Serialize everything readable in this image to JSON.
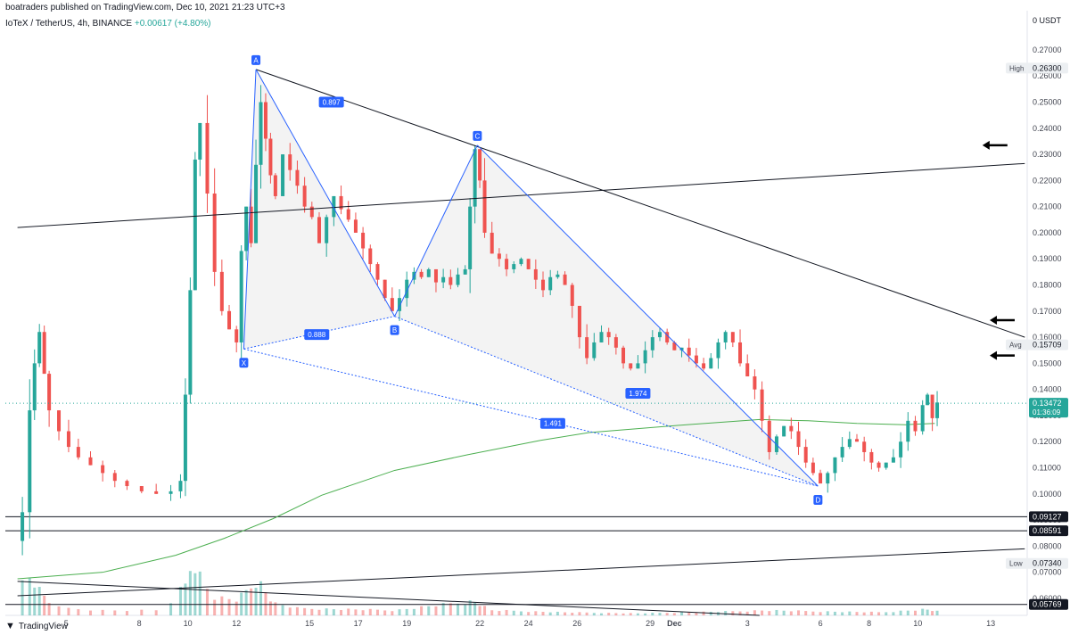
{
  "header": {
    "publisher": "boatraders published on TradingView.com, Dec 10, 2021 21:23 UTC+3",
    "symbol": "IoTeX / TetherUS, 4h, BINANCE",
    "change": "+0.00617 (+4.80%)"
  },
  "footer": {
    "brand": "TradingView"
  },
  "colors": {
    "up": "#26a69a",
    "down": "#ef5350",
    "pattern": "#2962ff",
    "ma": "#4caf50",
    "trend": "#131722"
  },
  "chart_data": {
    "type": "candlestick",
    "currency_label": "USDT",
    "ylim": [
      0.0535,
      0.285
    ],
    "y_ticks": [
      "0.27000",
      "0.26000",
      "0.25000",
      "0.24000",
      "0.23000",
      "0.22000",
      "0.21000",
      "0.20000",
      "0.19000",
      "0.18000",
      "0.17000",
      "0.16000",
      "0.15000",
      "0.14000",
      "0.13000",
      "0.12000",
      "0.11000",
      "0.10000",
      "0.09000",
      "0.08000",
      "0.07000",
      "0.06000"
    ],
    "x_ticks": [
      {
        "label": "5",
        "t": 6.5
      },
      {
        "label": "8",
        "t": 9.5
      },
      {
        "label": "10",
        "t": 11.5
      },
      {
        "label": "12",
        "t": 13.5
      },
      {
        "label": "15",
        "t": 16.5
      },
      {
        "label": "17",
        "t": 18.5
      },
      {
        "label": "19",
        "t": 20.5
      },
      {
        "label": "22",
        "t": 23.5
      },
      {
        "label": "24",
        "t": 25.5
      },
      {
        "label": "26",
        "t": 27.5
      },
      {
        "label": "29",
        "t": 30.5
      },
      {
        "label": "Dec",
        "t": 31.5
      },
      {
        "label": "3",
        "t": 34.5
      },
      {
        "label": "6",
        "t": 37.5
      },
      {
        "label": "8",
        "t": 39.5
      },
      {
        "label": "10",
        "t": 41.5
      },
      {
        "label": "13",
        "t": 44.5
      }
    ],
    "candle_close_points": [
      {
        "t": 4.5,
        "p": 0.082
      },
      {
        "t": 4.7,
        "p": 0.093
      },
      {
        "t": 5.0,
        "p": 0.132
      },
      {
        "t": 5.2,
        "p": 0.15
      },
      {
        "t": 5.4,
        "p": 0.162
      },
      {
        "t": 5.6,
        "p": 0.146
      },
      {
        "t": 5.8,
        "p": 0.132
      },
      {
        "t": 6.2,
        "p": 0.124
      },
      {
        "t": 6.6,
        "p": 0.118
      },
      {
        "t": 7.0,
        "p": 0.114
      },
      {
        "t": 7.5,
        "p": 0.111
      },
      {
        "t": 8.0,
        "p": 0.108
      },
      {
        "t": 8.5,
        "p": 0.105
      },
      {
        "t": 9.0,
        "p": 0.103
      },
      {
        "t": 9.6,
        "p": 0.101
      },
      {
        "t": 10.2,
        "p": 0.1
      },
      {
        "t": 10.8,
        "p": 0.101
      },
      {
        "t": 11.2,
        "p": 0.105
      },
      {
        "t": 11.4,
        "p": 0.138
      },
      {
        "t": 11.6,
        "p": 0.178
      },
      {
        "t": 11.8,
        "p": 0.228
      },
      {
        "t": 12.0,
        "p": 0.242
      },
      {
        "t": 12.3,
        "p": 0.215
      },
      {
        "t": 12.6,
        "p": 0.185
      },
      {
        "t": 12.9,
        "p": 0.17
      },
      {
        "t": 13.2,
        "p": 0.163
      },
      {
        "t": 13.5,
        "p": 0.158
      },
      {
        "t": 13.7,
        "p": 0.193
      },
      {
        "t": 13.9,
        "p": 0.21
      },
      {
        "t": 14.1,
        "p": 0.196
      },
      {
        "t": 14.3,
        "p": 0.226
      },
      {
        "t": 14.5,
        "p": 0.25
      },
      {
        "t": 14.7,
        "p": 0.236
      },
      {
        "t": 14.9,
        "p": 0.222
      },
      {
        "t": 15.1,
        "p": 0.214
      },
      {
        "t": 15.4,
        "p": 0.23
      },
      {
        "t": 15.7,
        "p": 0.224
      },
      {
        "t": 16.0,
        "p": 0.218
      },
      {
        "t": 16.3,
        "p": 0.21
      },
      {
        "t": 16.6,
        "p": 0.206
      },
      {
        "t": 16.9,
        "p": 0.196
      },
      {
        "t": 17.2,
        "p": 0.206
      },
      {
        "t": 17.5,
        "p": 0.214
      },
      {
        "t": 17.8,
        "p": 0.209
      },
      {
        "t": 18.1,
        "p": 0.205
      },
      {
        "t": 18.4,
        "p": 0.2
      },
      {
        "t": 18.7,
        "p": 0.194
      },
      {
        "t": 19.0,
        "p": 0.188
      },
      {
        "t": 19.3,
        "p": 0.182
      },
      {
        "t": 19.6,
        "p": 0.175
      },
      {
        "t": 19.9,
        "p": 0.17
      },
      {
        "t": 20.2,
        "p": 0.175
      },
      {
        "t": 20.5,
        "p": 0.182
      },
      {
        "t": 20.8,
        "p": 0.185
      },
      {
        "t": 21.1,
        "p": 0.183
      },
      {
        "t": 21.4,
        "p": 0.186
      },
      {
        "t": 21.7,
        "p": 0.181
      },
      {
        "t": 22.0,
        "p": 0.183
      },
      {
        "t": 22.3,
        "p": 0.18
      },
      {
        "t": 22.6,
        "p": 0.184
      },
      {
        "t": 22.9,
        "p": 0.186
      },
      {
        "t": 23.1,
        "p": 0.21
      },
      {
        "t": 23.3,
        "p": 0.232
      },
      {
        "t": 23.5,
        "p": 0.22
      },
      {
        "t": 23.7,
        "p": 0.2
      },
      {
        "t": 24.0,
        "p": 0.192
      },
      {
        "t": 24.3,
        "p": 0.19
      },
      {
        "t": 24.6,
        "p": 0.186
      },
      {
        "t": 24.9,
        "p": 0.188
      },
      {
        "t": 25.2,
        "p": 0.19
      },
      {
        "t": 25.5,
        "p": 0.186
      },
      {
        "t": 25.8,
        "p": 0.182
      },
      {
        "t": 26.1,
        "p": 0.178
      },
      {
        "t": 26.4,
        "p": 0.183
      },
      {
        "t": 26.7,
        "p": 0.184
      },
      {
        "t": 27.0,
        "p": 0.18
      },
      {
        "t": 27.3,
        "p": 0.172
      },
      {
        "t": 27.6,
        "p": 0.16
      },
      {
        "t": 27.9,
        "p": 0.152
      },
      {
        "t": 28.2,
        "p": 0.158
      },
      {
        "t": 28.5,
        "p": 0.162
      },
      {
        "t": 28.8,
        "p": 0.16
      },
      {
        "t": 29.1,
        "p": 0.156
      },
      {
        "t": 29.4,
        "p": 0.15
      },
      {
        "t": 29.7,
        "p": 0.148
      },
      {
        "t": 30.0,
        "p": 0.15
      },
      {
        "t": 30.3,
        "p": 0.155
      },
      {
        "t": 30.6,
        "p": 0.16
      },
      {
        "t": 30.9,
        "p": 0.162
      },
      {
        "t": 31.2,
        "p": 0.158
      },
      {
        "t": 31.5,
        "p": 0.155
      },
      {
        "t": 31.8,
        "p": 0.156
      },
      {
        "t": 32.1,
        "p": 0.153
      },
      {
        "t": 32.4,
        "p": 0.15
      },
      {
        "t": 32.7,
        "p": 0.148
      },
      {
        "t": 33.0,
        "p": 0.152
      },
      {
        "t": 33.3,
        "p": 0.158
      },
      {
        "t": 33.6,
        "p": 0.162
      },
      {
        "t": 33.9,
        "p": 0.158
      },
      {
        "t": 34.2,
        "p": 0.15
      },
      {
        "t": 34.5,
        "p": 0.145
      },
      {
        "t": 34.8,
        "p": 0.14
      },
      {
        "t": 35.1,
        "p": 0.128
      },
      {
        "t": 35.4,
        "p": 0.116
      },
      {
        "t": 35.7,
        "p": 0.122
      },
      {
        "t": 36.0,
        "p": 0.126
      },
      {
        "t": 36.3,
        "p": 0.124
      },
      {
        "t": 36.6,
        "p": 0.118
      },
      {
        "t": 36.9,
        "p": 0.112
      },
      {
        "t": 37.2,
        "p": 0.108
      },
      {
        "t": 37.5,
        "p": 0.104
      },
      {
        "t": 37.8,
        "p": 0.108
      },
      {
        "t": 38.1,
        "p": 0.114
      },
      {
        "t": 38.4,
        "p": 0.118
      },
      {
        "t": 38.7,
        "p": 0.121
      },
      {
        "t": 39.0,
        "p": 0.12
      },
      {
        "t": 39.3,
        "p": 0.116
      },
      {
        "t": 39.6,
        "p": 0.112
      },
      {
        "t": 39.9,
        "p": 0.11
      },
      {
        "t": 40.2,
        "p": 0.112
      },
      {
        "t": 40.5,
        "p": 0.114
      },
      {
        "t": 40.8,
        "p": 0.12
      },
      {
        "t": 41.1,
        "p": 0.128
      },
      {
        "t": 41.4,
        "p": 0.124
      },
      {
        "t": 41.7,
        "p": 0.134
      },
      {
        "t": 41.9,
        "p": 0.138
      },
      {
        "t": 42.1,
        "p": 0.129
      },
      {
        "t": 42.3,
        "p": 0.135
      }
    ],
    "volume_scale_max": 1,
    "volume_profile": [
      {
        "t": 4.5,
        "v": 0.28
      },
      {
        "t": 5.0,
        "v": 0.38
      },
      {
        "t": 5.5,
        "v": 0.22
      },
      {
        "t": 6.0,
        "v": 0.08
      },
      {
        "t": 8.0,
        "v": 0.05
      },
      {
        "t": 10.5,
        "v": 0.05
      },
      {
        "t": 11.4,
        "v": 0.3
      },
      {
        "t": 11.7,
        "v": 0.55
      },
      {
        "t": 12.0,
        "v": 0.4
      },
      {
        "t": 12.5,
        "v": 0.18
      },
      {
        "t": 13.5,
        "v": 0.15
      },
      {
        "t": 14.4,
        "v": 0.35
      },
      {
        "t": 15.0,
        "v": 0.12
      },
      {
        "t": 16.0,
        "v": 0.07
      },
      {
        "t": 18.0,
        "v": 0.06
      },
      {
        "t": 20.0,
        "v": 0.05
      },
      {
        "t": 23.2,
        "v": 0.14
      },
      {
        "t": 24.0,
        "v": 0.05
      },
      {
        "t": 27.0,
        "v": 0.03
      },
      {
        "t": 30.0,
        "v": 0.02
      },
      {
        "t": 34.0,
        "v": 0.04
      },
      {
        "t": 35.2,
        "v": 0.05
      },
      {
        "t": 37.2,
        "v": 0.04
      },
      {
        "t": 40.0,
        "v": 0.03
      },
      {
        "t": 41.8,
        "v": 0.06
      },
      {
        "t": 42.3,
        "v": 0.04
      }
    ],
    "moving_average": [
      {
        "t": 4.5,
        "p": 0.0675
      },
      {
        "t": 8.0,
        "p": 0.07
      },
      {
        "t": 11.0,
        "p": 0.0765
      },
      {
        "t": 13.0,
        "p": 0.083
      },
      {
        "t": 15.0,
        "p": 0.0905
      },
      {
        "t": 17.0,
        "p": 0.0995
      },
      {
        "t": 20.0,
        "p": 0.109
      },
      {
        "t": 23.0,
        "p": 0.115
      },
      {
        "t": 26.0,
        "p": 0.1205
      },
      {
        "t": 28.0,
        "p": 0.1235
      },
      {
        "t": 30.0,
        "p": 0.125
      },
      {
        "t": 32.0,
        "p": 0.1265
      },
      {
        "t": 35.0,
        "p": 0.1285
      },
      {
        "t": 37.0,
        "p": 0.128
      },
      {
        "t": 39.0,
        "p": 0.127
      },
      {
        "t": 41.0,
        "p": 0.1265
      },
      {
        "t": 42.2,
        "p": 0.127
      }
    ],
    "harmonic_pattern": {
      "points": [
        {
          "label": "X",
          "t": 13.8,
          "p": 0.1555
        },
        {
          "label": "A",
          "t": 14.3,
          "p": 0.2625
        },
        {
          "label": "B",
          "t": 20.0,
          "p": 0.168
        },
        {
          "label": "C",
          "t": 23.4,
          "p": 0.2335
        },
        {
          "label": "D",
          "t": 37.4,
          "p": 0.103
        }
      ],
      "ratios": [
        {
          "label": "0.897",
          "t": 17.4,
          "p": 0.25
        },
        {
          "label": "0.888",
          "t": 16.8,
          "p": 0.161
        },
        {
          "label": "1.974",
          "t": 30.0,
          "p": 0.1385
        },
        {
          "label": "1.491",
          "t": 26.5,
          "p": 0.127
        }
      ]
    },
    "trend_lines": [
      {
        "from": {
          "t": 4.5,
          "p": 0.202
        },
        "to": {
          "t": 45.9,
          "p": 0.2265
        }
      },
      {
        "from": {
          "t": 14.3,
          "p": 0.2625
        },
        "to": {
          "t": 45.9,
          "p": 0.16
        }
      },
      {
        "from": {
          "t": 4.5,
          "p": 0.061
        },
        "to": {
          "t": 45.9,
          "p": 0.079
        }
      },
      {
        "from": {
          "t": 4.5,
          "p": 0.0665
        },
        "to": {
          "t": 35.0,
          "p": 0.0535
        }
      }
    ],
    "horizontal_levels": [
      {
        "p": 0.09127,
        "label": "0.09127"
      },
      {
        "p": 0.08591,
        "label": "0.08591"
      },
      {
        "p": 0.05769,
        "label": "0.05769"
      }
    ],
    "arrows": [
      {
        "t": 44.6,
        "p": 0.2335
      },
      {
        "t": 44.9,
        "p": 0.1665
      },
      {
        "t": 44.9,
        "p": 0.153
      }
    ],
    "price_tags": [
      {
        "name": "High",
        "value": "0.26300",
        "p": 0.263
      },
      {
        "name": "Avg",
        "value": "0.15709",
        "p": 0.1571
      },
      {
        "name": "Low",
        "value": "0.07340",
        "p": 0.0734
      }
    ],
    "last_price": {
      "value": "0.13472",
      "p": 0.13472,
      "countdown": "01:36:09"
    }
  }
}
